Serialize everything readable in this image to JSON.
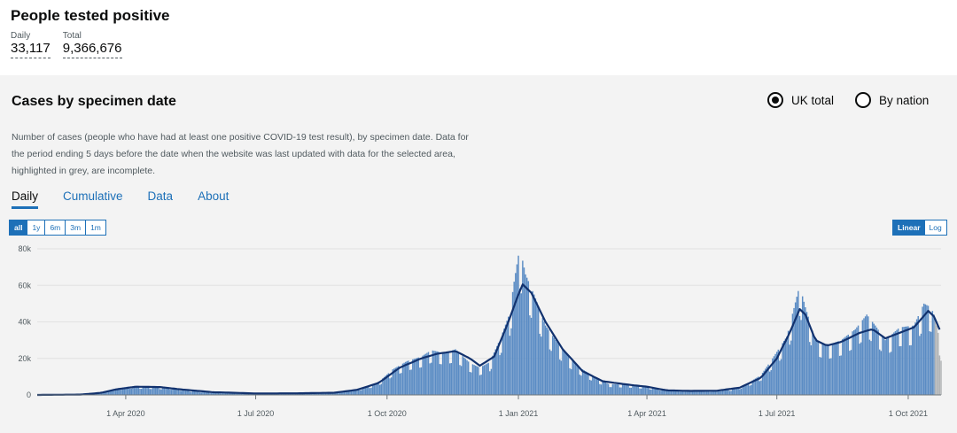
{
  "summary": {
    "title": "People tested positive",
    "daily_label": "Daily",
    "daily_value": "33,117",
    "total_label": "Total",
    "total_value": "9,366,676"
  },
  "card": {
    "title": "Cases by specimen date",
    "radio_uk": "UK total",
    "radio_nation": "By nation",
    "description": "Number of cases (people who have had at least one positive COVID-19 test result), by specimen date. Data for the period ending 5 days before the date when the website was last updated with data for the selected area, highlighted in grey, are incomplete.",
    "tabs": [
      "Daily",
      "Cumulative",
      "Data",
      "About"
    ],
    "range_buttons": [
      "all",
      "1y",
      "6m",
      "3m",
      "1m"
    ],
    "scale_buttons": [
      "Linear",
      "Log"
    ]
  },
  "colors": {
    "bar": "#5b8cc4",
    "bar_incomplete": "#b1b4b6",
    "line": "#12326e",
    "accent": "#1d70b8"
  },
  "chart_data": {
    "type": "bar",
    "x_start": "2020-01-30",
    "x_end": "2021-10-24",
    "ylim": [
      0,
      80000
    ],
    "yticks": [
      0,
      20000,
      40000,
      60000,
      80000
    ],
    "ytick_labels": [
      "0",
      "20k",
      "40k",
      "60k",
      "80k"
    ],
    "xticks": [
      "2020-04-01",
      "2020-07-01",
      "2020-10-01",
      "2021-01-01",
      "2021-04-01",
      "2021-07-01",
      "2021-10-01"
    ],
    "xtick_labels": [
      "1 Apr 2020",
      "1 Jul 2020",
      "1 Oct 2020",
      "1 Jan 2021",
      "1 Apr 2021",
      "1 Jul 2021",
      "1 Oct 2021"
    ],
    "incomplete_from": "2021-10-20",
    "grid": true,
    "series": [
      {
        "type": "bar",
        "points": [
          [
            "2020-01-30",
            0
          ],
          [
            "2020-03-01",
            300
          ],
          [
            "2020-03-15",
            1500
          ],
          [
            "2020-03-25",
            3500
          ],
          [
            "2020-04-05",
            4800
          ],
          [
            "2020-04-20",
            4500
          ],
          [
            "2020-05-01",
            4200
          ],
          [
            "2020-05-15",
            2500
          ],
          [
            "2020-06-01",
            1300
          ],
          [
            "2020-06-20",
            900
          ],
          [
            "2020-07-01",
            700
          ],
          [
            "2020-08-01",
            900
          ],
          [
            "2020-08-20",
            1200
          ],
          [
            "2020-09-01",
            1900
          ],
          [
            "2020-09-15",
            4000
          ],
          [
            "2020-09-25",
            7000
          ],
          [
            "2020-10-05",
            14000
          ],
          [
            "2020-10-15",
            18500
          ],
          [
            "2020-10-25",
            21000
          ],
          [
            "2020-11-01",
            24500
          ],
          [
            "2020-11-10",
            23000
          ],
          [
            "2020-11-18",
            25000
          ],
          [
            "2020-11-28",
            17500
          ],
          [
            "2020-12-05",
            15000
          ],
          [
            "2020-12-12",
            18000
          ],
          [
            "2020-12-20",
            32000
          ],
          [
            "2020-12-26",
            45000
          ],
          [
            "2020-12-29",
            62000
          ],
          [
            "2021-01-02",
            81000
          ],
          [
            "2021-01-06",
            66000
          ],
          [
            "2021-01-12",
            55000
          ],
          [
            "2021-01-20",
            38000
          ],
          [
            "2021-01-28",
            29000
          ],
          [
            "2021-02-05",
            21000
          ],
          [
            "2021-02-15",
            14000
          ],
          [
            "2021-02-25",
            9000
          ],
          [
            "2021-03-05",
            6000
          ],
          [
            "2021-03-20",
            5500
          ],
          [
            "2021-04-01",
            4500
          ],
          [
            "2021-04-15",
            2800
          ],
          [
            "2021-05-01",
            2400
          ],
          [
            "2021-05-15",
            2400
          ],
          [
            "2021-06-01",
            3200
          ],
          [
            "2021-06-10",
            6000
          ],
          [
            "2021-06-20",
            11000
          ],
          [
            "2021-06-28",
            20000
          ],
          [
            "2021-07-08",
            32000
          ],
          [
            "2021-07-17",
            60000
          ],
          [
            "2021-07-21",
            48000
          ],
          [
            "2021-07-28",
            30000
          ],
          [
            "2021-08-05",
            27000
          ],
          [
            "2021-08-15",
            30000
          ],
          [
            "2021-08-25",
            36000
          ],
          [
            "2021-09-02",
            44000
          ],
          [
            "2021-09-08",
            38000
          ],
          [
            "2021-09-15",
            30000
          ],
          [
            "2021-09-25",
            37000
          ],
          [
            "2021-10-05",
            38000
          ],
          [
            "2021-10-12",
            50000
          ],
          [
            "2021-10-17",
            48000
          ],
          [
            "2021-10-20",
            42000
          ],
          [
            "2021-10-24",
            26000
          ]
        ]
      },
      {
        "type": "line",
        "name": "",
        "points": [
          [
            "2020-01-30",
            0
          ],
          [
            "2020-03-01",
            200
          ],
          [
            "2020-03-15",
            1200
          ],
          [
            "2020-03-25",
            3000
          ],
          [
            "2020-04-08",
            4500
          ],
          [
            "2020-04-25",
            4300
          ],
          [
            "2020-05-10",
            3000
          ],
          [
            "2020-06-01",
            1500
          ],
          [
            "2020-07-01",
            800
          ],
          [
            "2020-08-01",
            900
          ],
          [
            "2020-08-25",
            1200
          ],
          [
            "2020-09-10",
            2800
          ],
          [
            "2020-09-25",
            6500
          ],
          [
            "2020-10-10",
            15000
          ],
          [
            "2020-10-25",
            20000
          ],
          [
            "2020-11-05",
            22500
          ],
          [
            "2020-11-18",
            24000
          ],
          [
            "2020-11-28",
            20000
          ],
          [
            "2020-12-05",
            16000
          ],
          [
            "2020-12-15",
            21000
          ],
          [
            "2020-12-24",
            38000
          ],
          [
            "2021-01-01",
            55000
          ],
          [
            "2021-01-04",
            60500
          ],
          [
            "2021-01-10",
            56000
          ],
          [
            "2021-01-20",
            40000
          ],
          [
            "2021-02-01",
            25000
          ],
          [
            "2021-02-15",
            13000
          ],
          [
            "2021-03-01",
            7500
          ],
          [
            "2021-03-20",
            5500
          ],
          [
            "2021-04-01",
            4500
          ],
          [
            "2021-04-15",
            2500
          ],
          [
            "2021-05-01",
            2200
          ],
          [
            "2021-05-20",
            2300
          ],
          [
            "2021-06-05",
            4000
          ],
          [
            "2021-06-20",
            9500
          ],
          [
            "2021-07-01",
            20000
          ],
          [
            "2021-07-10",
            34000
          ],
          [
            "2021-07-17",
            47000
          ],
          [
            "2021-07-21",
            44000
          ],
          [
            "2021-07-28",
            30000
          ],
          [
            "2021-08-05",
            27000
          ],
          [
            "2021-08-15",
            29000
          ],
          [
            "2021-08-28",
            34000
          ],
          [
            "2021-09-06",
            36000
          ],
          [
            "2021-09-15",
            31000
          ],
          [
            "2021-09-25",
            34000
          ],
          [
            "2021-10-05",
            37000
          ],
          [
            "2021-10-15",
            46000
          ],
          [
            "2021-10-19",
            43000
          ],
          [
            "2021-10-24",
            34000
          ]
        ]
      }
    ]
  }
}
